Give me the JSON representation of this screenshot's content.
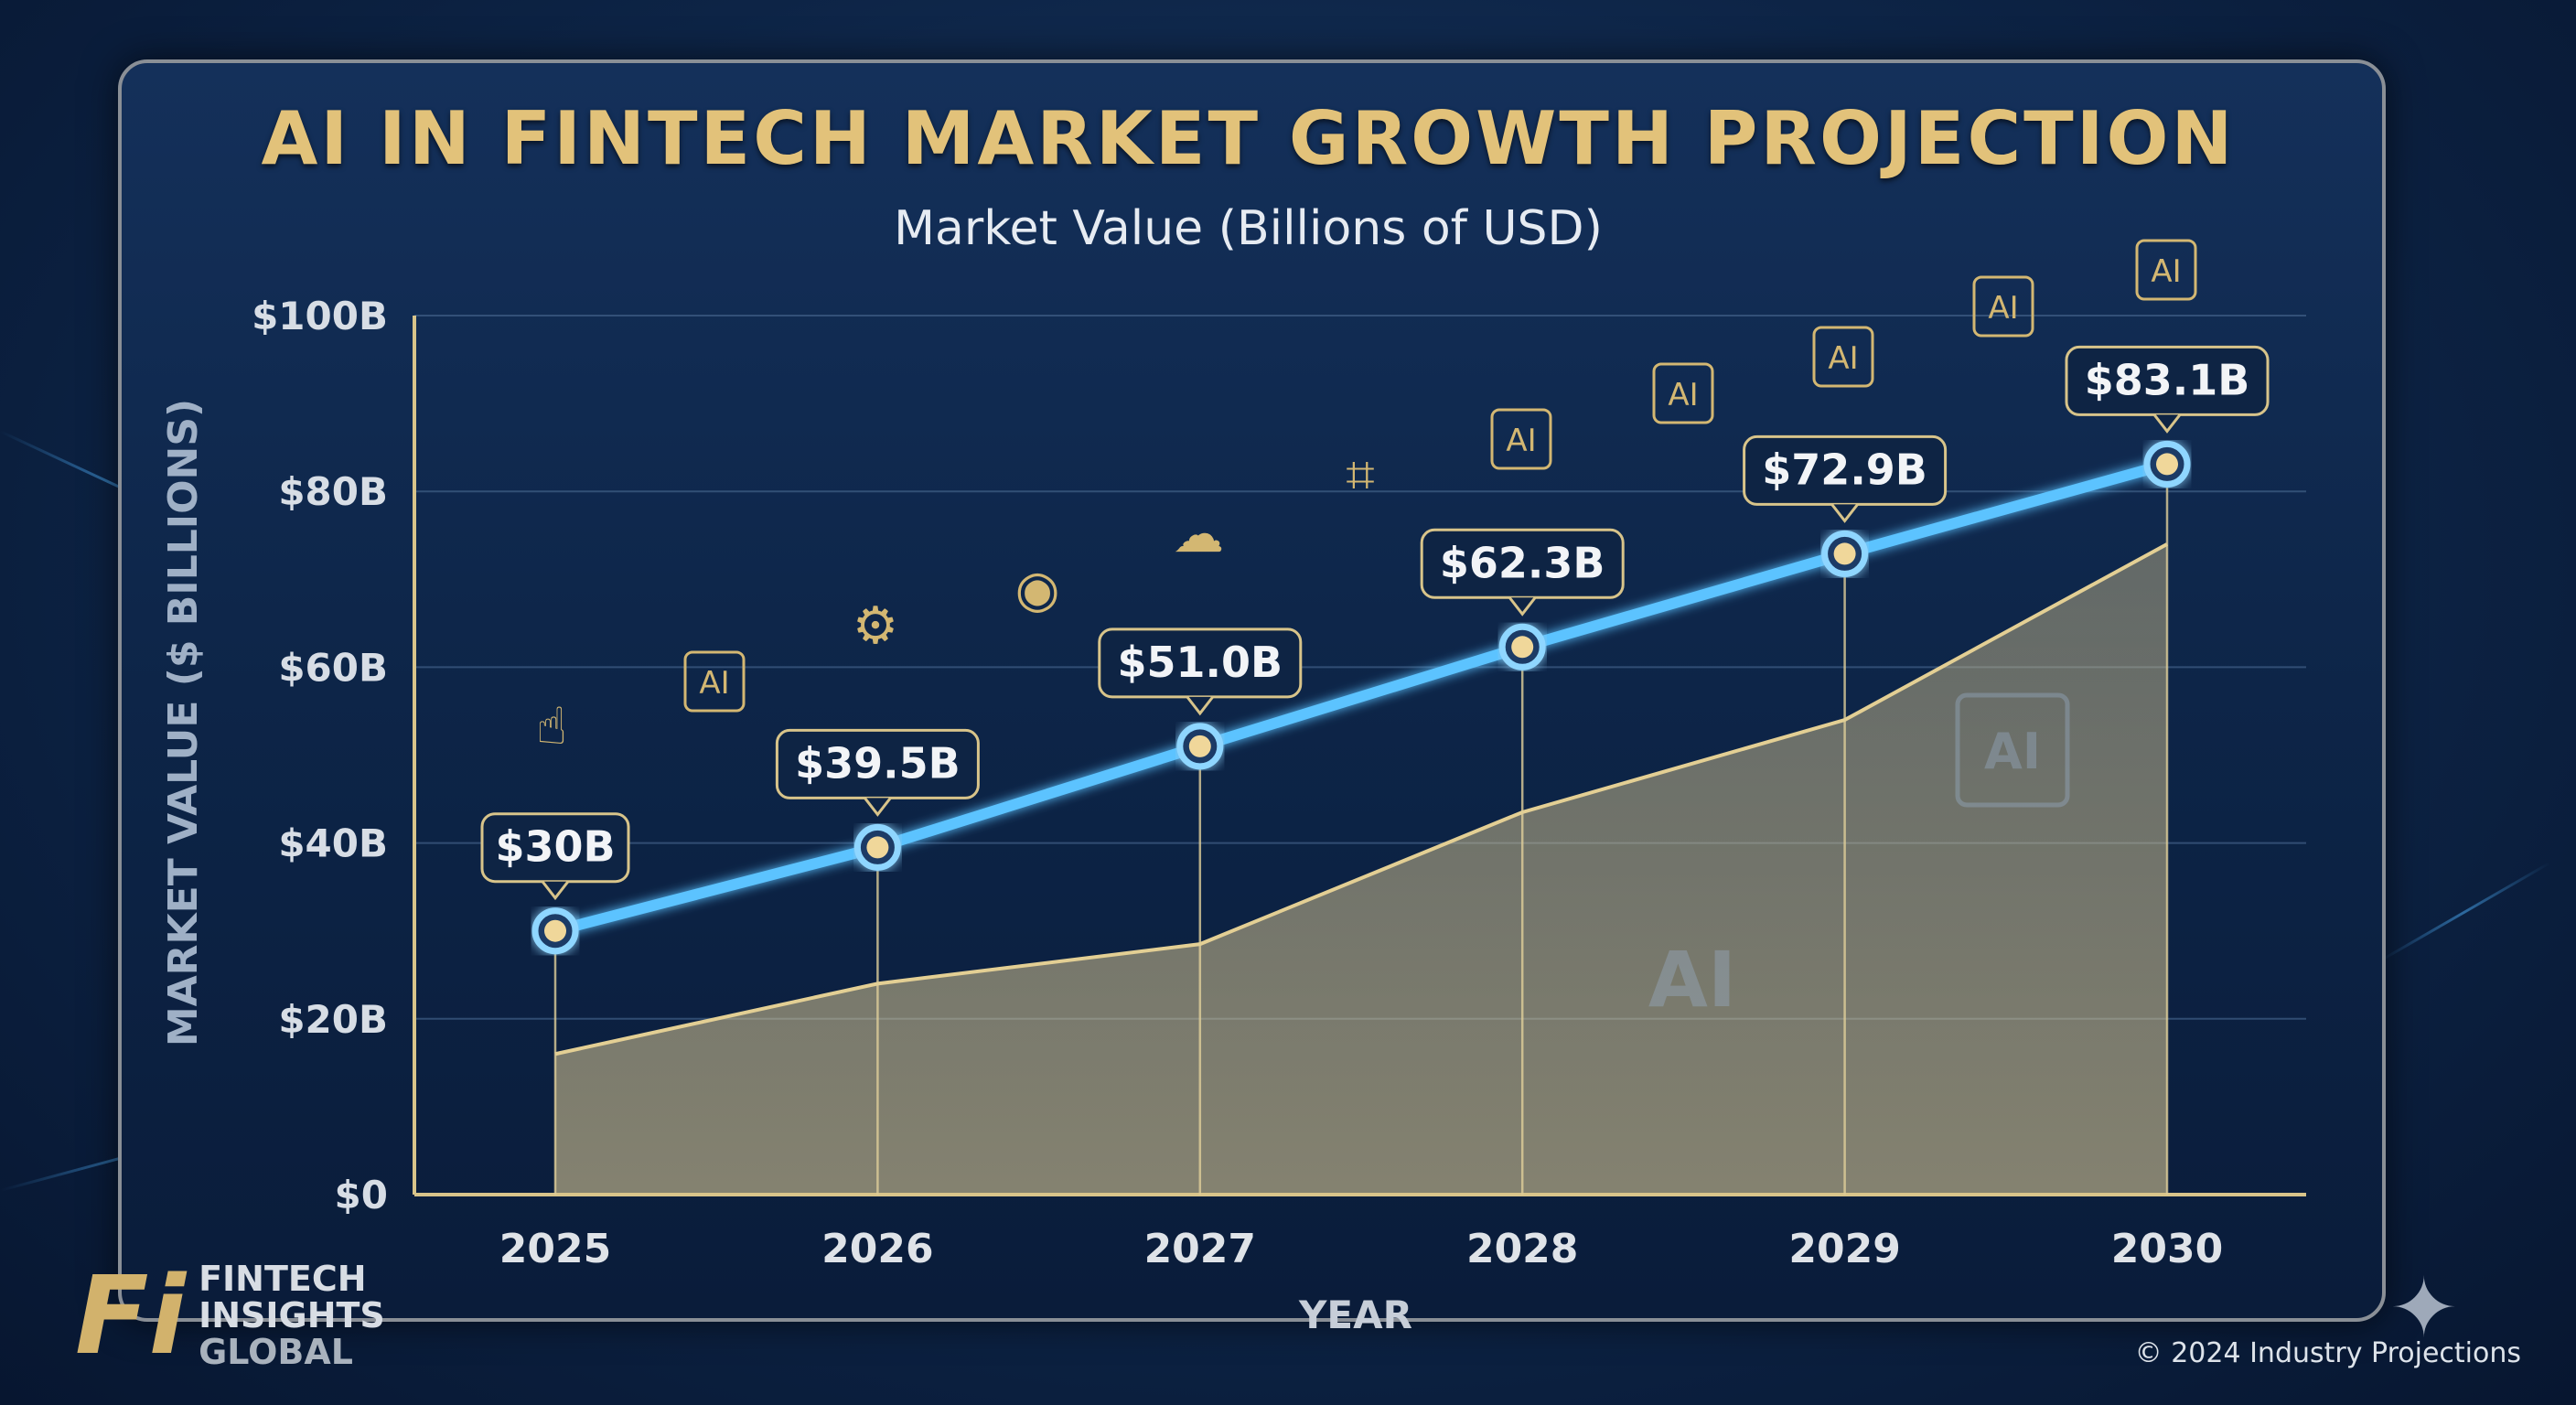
{
  "chart_data": {
    "type": "line",
    "title": "AI IN FINTECH MARKET GROWTH PROJECTION",
    "subtitle": "Market Value (Billions of USD)",
    "xlabel": "YEAR",
    "ylabel": "MARKET VALUE ($ BILLIONS)",
    "categories": [
      "2025",
      "2026",
      "2027",
      "2028",
      "2029",
      "2030"
    ],
    "ylim": [
      0,
      100
    ],
    "yticks": [
      0,
      20,
      40,
      60,
      80,
      100
    ],
    "ytick_labels": [
      "$0",
      "$20B",
      "$40B",
      "$60B",
      "$80B",
      "$100B"
    ],
    "grid": true,
    "series": [
      {
        "type": "line",
        "values": [
          30,
          39.5,
          51.0,
          62.3,
          72.9,
          83.1
        ],
        "data_labels": [
          "$30B",
          "$39.5B",
          "$51.0B",
          "$62.3B",
          "$72.9B",
          "$83.1B"
        ],
        "color": "#5cc3ff"
      },
      {
        "type": "area",
        "values": [
          16,
          24,
          28.5,
          43.5,
          54,
          74
        ],
        "color": "#d9c48a"
      }
    ]
  },
  "branding": {
    "logo_mark": "Fi",
    "logo_lines": [
      "FINTECH",
      "INSIGHTS",
      "GLOBAL"
    ]
  },
  "footer": {
    "copyright": "© 2024 Industry Projections"
  },
  "icons": [
    "hand-pointer-icon",
    "ai-chip-icon",
    "hands-gear-icon",
    "chip-circle-icon",
    "cloud-server-icon",
    "circuit-icon",
    "ai-head-icon",
    "ai-cloud-icon",
    "ai-chip-icon",
    "ai-network-icon",
    "ai-chip-icon"
  ],
  "colors": {
    "accent_gold": "#e2c27a",
    "line_blue": "#5cc3ff",
    "background": "#0d2446"
  }
}
